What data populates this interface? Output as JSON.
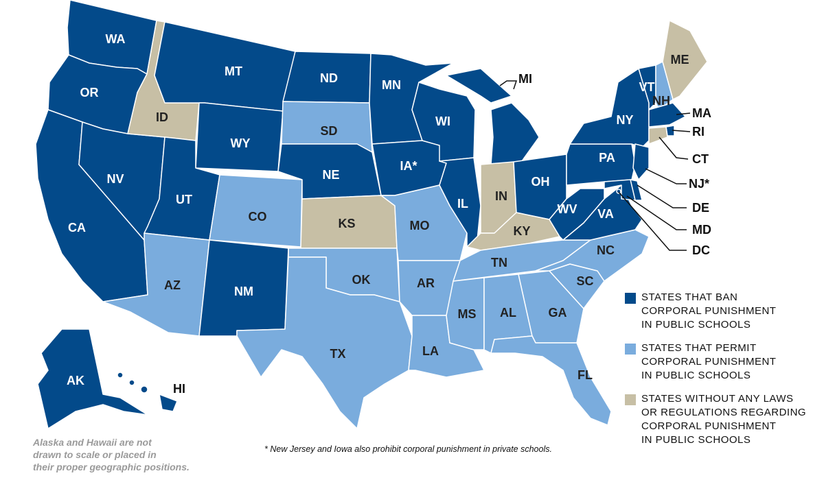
{
  "colors": {
    "ban": "#034a8a",
    "permit": "#7aacdd",
    "no_law": "#c7bfa5"
  },
  "states": [
    {
      "abbr": "WA",
      "category": "ban"
    },
    {
      "abbr": "OR",
      "category": "ban"
    },
    {
      "abbr": "CA",
      "category": "ban"
    },
    {
      "abbr": "NV",
      "category": "ban"
    },
    {
      "abbr": "ID",
      "category": "no_law"
    },
    {
      "abbr": "MT",
      "category": "ban"
    },
    {
      "abbr": "WY",
      "category": "ban"
    },
    {
      "abbr": "UT",
      "category": "ban"
    },
    {
      "abbr": "AZ",
      "category": "permit"
    },
    {
      "abbr": "CO",
      "category": "permit"
    },
    {
      "abbr": "NM",
      "category": "ban"
    },
    {
      "abbr": "ND",
      "category": "ban"
    },
    {
      "abbr": "SD",
      "category": "permit"
    },
    {
      "abbr": "NE",
      "category": "ban"
    },
    {
      "abbr": "KS",
      "category": "no_law"
    },
    {
      "abbr": "OK",
      "category": "permit"
    },
    {
      "abbr": "TX",
      "category": "permit"
    },
    {
      "abbr": "MN",
      "category": "ban"
    },
    {
      "abbr": "IA*",
      "category": "ban"
    },
    {
      "abbr": "MO",
      "category": "permit"
    },
    {
      "abbr": "AR",
      "category": "permit"
    },
    {
      "abbr": "LA",
      "category": "permit"
    },
    {
      "abbr": "WI",
      "category": "ban"
    },
    {
      "abbr": "IL",
      "category": "ban"
    },
    {
      "abbr": "MI",
      "category": "ban"
    },
    {
      "abbr": "IN",
      "category": "no_law"
    },
    {
      "abbr": "OH",
      "category": "ban"
    },
    {
      "abbr": "KY",
      "category": "no_law"
    },
    {
      "abbr": "TN",
      "category": "permit"
    },
    {
      "abbr": "MS",
      "category": "permit"
    },
    {
      "abbr": "AL",
      "category": "permit"
    },
    {
      "abbr": "GA",
      "category": "permit"
    },
    {
      "abbr": "FL",
      "category": "permit"
    },
    {
      "abbr": "SC",
      "category": "permit"
    },
    {
      "abbr": "NC",
      "category": "permit"
    },
    {
      "abbr": "VA",
      "category": "ban"
    },
    {
      "abbr": "WV",
      "category": "ban"
    },
    {
      "abbr": "PA",
      "category": "ban"
    },
    {
      "abbr": "NY",
      "category": "ban"
    },
    {
      "abbr": "VT",
      "category": "ban"
    },
    {
      "abbr": "NH",
      "category": "permit"
    },
    {
      "abbr": "ME",
      "category": "no_law"
    },
    {
      "abbr": "MA",
      "category": "ban"
    },
    {
      "abbr": "RI",
      "category": "ban"
    },
    {
      "abbr": "CT",
      "category": "no_law"
    },
    {
      "abbr": "NJ*",
      "category": "ban"
    },
    {
      "abbr": "DE",
      "category": "ban"
    },
    {
      "abbr": "MD",
      "category": "ban"
    },
    {
      "abbr": "DC",
      "category": "ban"
    },
    {
      "abbr": "AK",
      "category": "ban"
    },
    {
      "abbr": "HI",
      "category": "ban"
    }
  ],
  "legend": [
    {
      "category": "ban",
      "lines": [
        "STATES THAT BAN",
        "CORPORAL PUNISHMENT",
        "IN PUBLIC SCHOOLS"
      ]
    },
    {
      "category": "permit",
      "lines": [
        "STATES THAT PERMIT",
        "CORPORAL PUNISHMENT",
        "IN PUBLIC SCHOOLS"
      ]
    },
    {
      "category": "no_law",
      "lines": [
        "STATES WITHOUT ANY LAWS",
        "OR REGULATIONS REGARDING",
        "CORPORAL PUNISHMENT",
        "IN PUBLIC SCHOOLS"
      ]
    }
  ],
  "notes": {
    "inset": [
      "Alaska and Hawaii are not",
      "drawn to scale or placed in",
      "their proper geographic positions."
    ],
    "footnote": "* New Jersey and Iowa also prohibit corporal punishment in private schools."
  }
}
